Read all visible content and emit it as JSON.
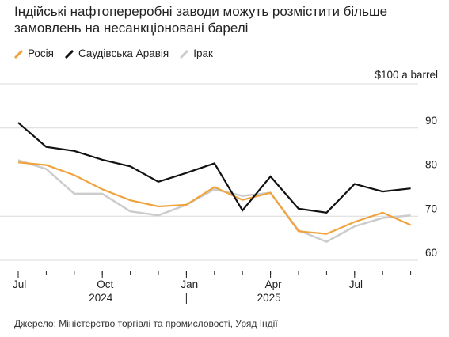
{
  "title": "Індійські нафтопереробні заводи можуть розмістити більше замовлень на несанкціоновані барелі",
  "source": "Джерело: Міністерство торгівлі та промисловості, Уряд Індії",
  "colors": {
    "russia": "#f0a33c",
    "saudi": "#111111",
    "iraq": "#cccccc",
    "grid": "#d9d9d9"
  },
  "chart_data": {
    "type": "line",
    "title": "Індійські нафтопереробні заводи можуть розмістити більше замовлень на несанкціоновані барелі",
    "unit_label": "$100 a barrel",
    "y_ticks": [
      60,
      70,
      80,
      90
    ],
    "ylim": [
      57.5,
      100
    ],
    "x": [
      "2024-07",
      "2024-08",
      "2024-09",
      "2024-10",
      "2024-11",
      "2024-12",
      "2025-01",
      "2025-02",
      "2025-03",
      "2025-04",
      "2025-05",
      "2025-06",
      "2025-07",
      "2025-08",
      "2025-09"
    ],
    "x_ticks": [
      {
        "label": "Jul",
        "x": "2024-07"
      },
      {
        "label": "Oct",
        "x": "2024-10"
      },
      {
        "label": "Jan",
        "x": "2025-01"
      },
      {
        "label": "Apr",
        "x": "2025-04"
      },
      {
        "label": "Jul",
        "x": "2025-07"
      }
    ],
    "year_labels": [
      {
        "label": "2024",
        "x": "2024-10"
      },
      {
        "label": "2025",
        "x": "2025-04"
      }
    ],
    "year_divider": "2025-01",
    "legend_position": "top-left",
    "grid": true,
    "series": [
      {
        "key": "russia",
        "name": "Росія",
        "values": [
          82.2,
          81.6,
          79.3,
          76.1,
          73.6,
          72.2,
          72.6,
          76.6,
          73.7,
          75.3,
          66.6,
          66.0,
          68.7,
          70.8,
          68.0
        ]
      },
      {
        "key": "saudi",
        "name": "Саудівська Аравія",
        "values": [
          91.2,
          85.7,
          84.8,
          82.8,
          81.3,
          77.8,
          79.8,
          82.0,
          71.3,
          79.0,
          71.7,
          70.8,
          77.3,
          75.6,
          76.3
        ]
      },
      {
        "key": "iraq",
        "name": "Ірак",
        "values": [
          82.7,
          80.7,
          75.1,
          75.1,
          71.1,
          70.2,
          72.6,
          76.1,
          74.6,
          75.3,
          66.8,
          64.2,
          67.7,
          69.6,
          70.2
        ]
      }
    ]
  }
}
